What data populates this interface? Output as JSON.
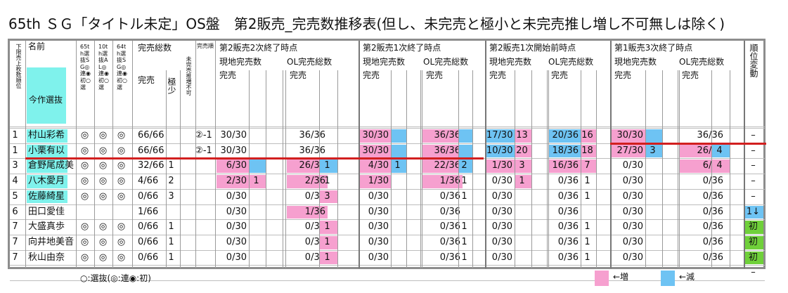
{
  "title": "65th ＳＧ「タイトル未定」OS盤　第2販売_完売数推移表(但し、未完売と極小と未完売推し増し不可無しは除く)",
  "header": {
    "rank_label": "下限売上枚数順位",
    "name_label": "名前",
    "s65_label": "65th選抜SG◎連◉初○選",
    "al10_label": "10th選抜AL◎連◉初○選",
    "s64_label": "64th選抜SG◎連◉初○選",
    "kanbai_label": "完売総数",
    "kanbai_jun_label": "完売順",
    "section_labels": [
      "第2販売2次終了時点",
      "第2販売1次終了時点",
      "第2販売1次開始前時点",
      "第1販売3次終了時点"
    ],
    "genchi_label": "現地完売数",
    "ol_label": "OL完売総数",
    "kanbai": "完売",
    "gokusho": "極少",
    "mikanbai": "未完売推増不可",
    "rank_change_label": "順位変動",
    "prev_label": "今作選抜"
  },
  "rows": [
    {
      "rank": "1",
      "name": "村山彩希",
      "s65": "◎",
      "a10": "◎",
      "s64": "◎",
      "total": "66/66",
      "jun": "②-1",
      "c": [
        [
          "30/30",
          "",
          "",
          "36/36",
          "",
          ""
        ],
        [
          "30/30",
          "",
          "",
          "36/36",
          "",
          ""
        ],
        [
          "17/30",
          "13",
          "",
          "20/36",
          "16",
          ""
        ],
        [
          "30/30",
          "",
          "",
          "36/36",
          "",
          ""
        ]
      ],
      "change": "–"
    },
    {
      "rank": "1",
      "name": "小栗有以",
      "s65": "◎",
      "a10": "◎",
      "s64": "◎",
      "total": "66/66",
      "jun": "②-1",
      "c": [
        [
          "30/30",
          "",
          "",
          "36/36",
          "",
          ""
        ],
        [
          "30/30",
          "",
          "",
          "36/36",
          "",
          ""
        ],
        [
          "10/30",
          "20",
          "",
          "18/36",
          "18",
          ""
        ],
        [
          "27/30",
          "3",
          "",
          "26/36",
          "4",
          ""
        ]
      ],
      "change": "–"
    },
    {
      "rank": "3",
      "name": "倉野尾成美",
      "s65": "◎",
      "a10": "◎",
      "s64": "◎",
      "total": "32/66",
      "g": "1",
      "jun": "",
      "c": [
        [
          "6/30",
          "",
          "",
          "26/36",
          "1",
          ""
        ],
        [
          "4/30",
          "1",
          "",
          "22/36",
          "2",
          ""
        ],
        [
          "1/30",
          "3",
          "",
          "16/36",
          "7",
          ""
        ],
        [
          "0/30",
          "",
          "",
          "6/36",
          "4",
          ""
        ]
      ],
      "change": "–"
    },
    {
      "rank": "4",
      "name": "八木愛月",
      "s65": "◎",
      "a10": "◎",
      "s64": "◎",
      "total": "4/66",
      "g": "2",
      "jun": "",
      "c": [
        [
          "2/30",
          "1",
          "",
          "2/36",
          "1",
          ""
        ],
        [
          "1/30",
          "",
          "",
          "1/36",
          "1",
          ""
        ],
        [
          "0/30",
          "1",
          "",
          "0/36",
          "1",
          ""
        ],
        [
          "0/30",
          "",
          "",
          "0/36",
          "",
          ""
        ]
      ],
      "change": "–"
    },
    {
      "rank": "5",
      "name": "佐藤綺星",
      "s65": "◎",
      "a10": "◎",
      "s64": "◎",
      "total": "0/66",
      "g": "3",
      "jun": "",
      "c": [
        [
          "0/30",
          "",
          "",
          "0/36",
          "3",
          ""
        ],
        [
          "0/30",
          "",
          "",
          "0/36",
          "1",
          ""
        ],
        [
          "0/30",
          "",
          "",
          "0/36",
          "1",
          ""
        ],
        [
          "0/30",
          "",
          "",
          "0/36",
          "",
          ""
        ]
      ],
      "change": "–"
    },
    {
      "rank": "6",
      "name": "田口愛佳",
      "s65": "",
      "a10": "",
      "s64": "",
      "total": "1/66",
      "g": "",
      "jun": "",
      "c": [
        [
          "0/30",
          "",
          "",
          "1/36",
          "",
          ""
        ],
        [
          "0/30",
          "",
          "",
          "0/36",
          "",
          ""
        ],
        [
          "0/30",
          "",
          "",
          "0/36",
          "",
          ""
        ],
        [
          "0/30",
          "",
          "",
          "0/36",
          "",
          ""
        ]
      ],
      "change": "1↓"
    },
    {
      "rank": "7",
      "name": "大盛真歩",
      "s65": "◎",
      "a10": "◎",
      "s64": "◎",
      "total": "0/66",
      "g": "1",
      "jun": "",
      "c": [
        [
          "0/30",
          "",
          "",
          "0/36",
          "1",
          ""
        ],
        [
          "0/30",
          "",
          "",
          "0/36",
          "1",
          ""
        ],
        [
          "0/30",
          "",
          "",
          "0/36",
          "1",
          ""
        ],
        [
          "0/30",
          "",
          "",
          "0/36",
          "",
          ""
        ]
      ],
      "change": "初"
    },
    {
      "rank": "7",
      "name": "向井地美音",
      "s65": "◎",
      "a10": "◎",
      "s64": "◎",
      "total": "0/66",
      "g": "1",
      "jun": "",
      "c": [
        [
          "0/30",
          "",
          "",
          "0/36",
          "1",
          ""
        ],
        [
          "0/30",
          "",
          "",
          "0/36",
          "1",
          ""
        ],
        [
          "0/30",
          "",
          "",
          "0/36",
          "1",
          ""
        ],
        [
          "0/30",
          "",
          "",
          "0/36",
          "",
          ""
        ]
      ],
      "change": "初"
    },
    {
      "rank": "7",
      "name": "秋山由奈",
      "s65": "◎",
      "a10": "◎",
      "s64": "◎",
      "total": "0/66",
      "g": "1",
      "jun": "",
      "c": [
        [
          "0/30",
          "",
          "",
          "0/36",
          "1",
          ""
        ],
        [
          "0/30",
          "",
          "",
          "0/36",
          "1",
          ""
        ],
        [
          "0/30",
          "",
          "",
          "0/36",
          "1",
          ""
        ],
        [
          "0/30",
          "",
          "",
          "0/36",
          "",
          ""
        ]
      ],
      "change": "初"
    },
    {
      "rank": "",
      "name": "",
      "s65": "",
      "a10": "",
      "s64": "",
      "total": "",
      "g": "",
      "jun": "",
      "c": [
        [
          "",
          "",
          "",
          "",
          "",
          ""
        ],
        [
          "",
          "",
          "",
          "",
          "",
          ""
        ],
        [
          "",
          "",
          "",
          "",
          "",
          ""
        ],
        [
          "",
          "",
          "",
          "",
          "",
          ""
        ]
      ],
      "change": "–"
    }
  ],
  "footer": {
    "legend_text": "○:選抜(◎:連◉:初)",
    "increase_label": "←増",
    "decrease_label": "←減"
  },
  "colors": {
    "increase": "#f6a0cf",
    "decrease": "#6ec3f3",
    "prev_select": "#7ff2ec",
    "new": "#6fd03a",
    "cutline": "#d21f1f"
  }
}
